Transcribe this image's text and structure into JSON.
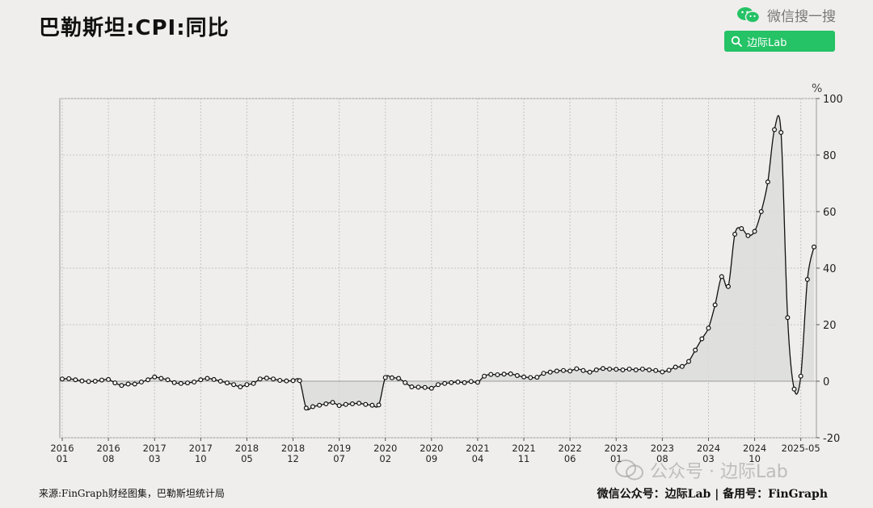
{
  "title": "巴勒斯坦:CPI:同比",
  "brand": {
    "wechat_search_label": "微信搜一搜",
    "search_text": "边际Lab",
    "accent_color": "#25c266"
  },
  "watermark": "公众号 · 边际Lab",
  "footer": {
    "source": "来源:FinGraph财经图集，巴勒斯坦统计局",
    "right": "微信公众号：边际Lab  |  备用号：FinGraph"
  },
  "chart_data": {
    "type": "line",
    "unit_label": "%",
    "ylim": [
      -20,
      100
    ],
    "y_ticks": [
      100,
      80,
      60,
      40,
      20,
      0,
      -20
    ],
    "x_tick_labels": [
      {
        "index": 0,
        "top": "2016",
        "bottom": "01"
      },
      {
        "index": 7,
        "top": "2016",
        "bottom": "08"
      },
      {
        "index": 14,
        "top": "2017",
        "bottom": "03"
      },
      {
        "index": 21,
        "top": "2017",
        "bottom": "10"
      },
      {
        "index": 28,
        "top": "2018",
        "bottom": "05"
      },
      {
        "index": 35,
        "top": "2018",
        "bottom": "12"
      },
      {
        "index": 42,
        "top": "2019",
        "bottom": "07"
      },
      {
        "index": 49,
        "top": "2020",
        "bottom": "02"
      },
      {
        "index": 56,
        "top": "2020",
        "bottom": "09"
      },
      {
        "index": 63,
        "top": "2021",
        "bottom": "04"
      },
      {
        "index": 70,
        "top": "2021",
        "bottom": "11"
      },
      {
        "index": 77,
        "top": "2022",
        "bottom": "06"
      },
      {
        "index": 84,
        "top": "2023",
        "bottom": "01"
      },
      {
        "index": 91,
        "top": "2023",
        "bottom": "08"
      },
      {
        "index": 98,
        "top": "2024",
        "bottom": "03"
      },
      {
        "index": 105,
        "top": "2024",
        "bottom": "10"
      },
      {
        "index": 112,
        "top": "2025-05",
        "bottom": ""
      }
    ],
    "start": "2016-01",
    "end": "2025-05",
    "values": [
      0.8,
      0.9,
      0.5,
      0.1,
      -0.1,
      0.0,
      0.4,
      0.6,
      -0.6,
      -1.5,
      -1.0,
      -1.0,
      -0.3,
      0.5,
      1.5,
      1.0,
      0.5,
      -0.5,
      -0.8,
      -0.6,
      -0.3,
      0.5,
      1.0,
      0.6,
      0.0,
      -0.6,
      -1.2,
      -2.0,
      -1.2,
      -0.8,
      0.8,
      1.1,
      0.8,
      0.3,
      0.1,
      0.2,
      0.2,
      -9.5,
      -9.0,
      -8.5,
      -8.0,
      -7.5,
      -8.6,
      -8.2,
      -8.0,
      -7.8,
      -8.2,
      -8.5,
      -8.4,
      1.3,
      1.2,
      1.0,
      -0.5,
      -2.0,
      -2.1,
      -2.2,
      -2.5,
      -1.2,
      -0.8,
      -0.5,
      -0.3,
      -0.5,
      -0.1,
      -0.4,
      1.8,
      2.4,
      2.3,
      2.5,
      2.6,
      2.0,
      1.5,
      1.3,
      1.4,
      2.8,
      3.2,
      3.6,
      3.8,
      3.6,
      4.4,
      3.8,
      3.2,
      4.0,
      4.5,
      4.3,
      4.2,
      4.0,
      4.3,
      4.0,
      4.3,
      4.0,
      3.8,
      3.3,
      3.9,
      5.0,
      5.2,
      7.0,
      11.0,
      15.0,
      18.8,
      27.0,
      37.0,
      33.5,
      52.0,
      54.0,
      51.5,
      53.0,
      60.0,
      70.5,
      89.0,
      88.0,
      22.5,
      -2.8,
      1.8,
      36.0,
      47.5
    ]
  }
}
